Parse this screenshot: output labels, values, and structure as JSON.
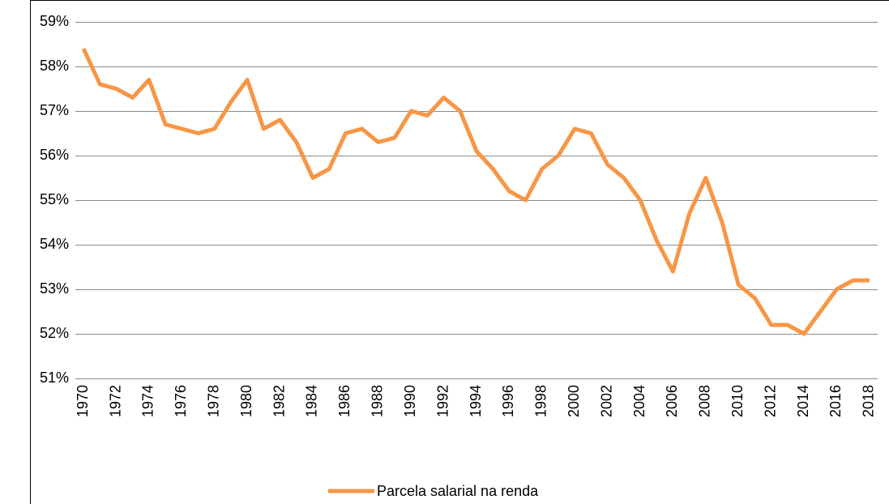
{
  "chart_data": {
    "type": "line",
    "categories": [
      "1970",
      null,
      "1972",
      null,
      "1974",
      null,
      "1976",
      null,
      "1978",
      null,
      "1980",
      null,
      "1982",
      null,
      "1984",
      null,
      "1986",
      null,
      "1988",
      null,
      "1990",
      null,
      "1992",
      null,
      "1994",
      null,
      "1996",
      null,
      "1998",
      null,
      "2000",
      null,
      "2002",
      null,
      "2004",
      null,
      "2006",
      null,
      "2008",
      null,
      "2010",
      null,
      "2012",
      null,
      "2014",
      null,
      "2016",
      null,
      "2018"
    ],
    "series": [
      {
        "name": "Parcela salarial na renda",
        "color": "#f79646",
        "values": [
          58.4,
          57.6,
          57.5,
          57.3,
          57.7,
          56.7,
          56.6,
          56.5,
          56.6,
          57.2,
          57.7,
          56.6,
          56.8,
          56.3,
          55.5,
          55.7,
          56.5,
          56.6,
          56.3,
          56.4,
          57.0,
          56.9,
          57.3,
          57.0,
          56.1,
          55.7,
          55.2,
          55.0,
          55.7,
          56.0,
          56.6,
          56.5,
          55.8,
          55.5,
          55.0,
          54.1,
          53.4,
          54.7,
          55.5,
          54.5,
          53.1,
          52.8,
          52.2,
          52.2,
          52.0,
          52.5,
          53.0,
          53.2,
          53.2
        ]
      }
    ],
    "ylim": [
      51,
      59
    ],
    "yticks": [
      {
        "value": 51,
        "label": "51%"
      },
      {
        "value": 52,
        "label": "52%"
      },
      {
        "value": 53,
        "label": "53%"
      },
      {
        "value": 54,
        "label": "54%"
      },
      {
        "value": 55,
        "label": "55%"
      },
      {
        "value": 56,
        "label": "56%"
      },
      {
        "value": 57,
        "label": "57%"
      },
      {
        "value": 58,
        "label": "58%"
      },
      {
        "value": 59,
        "label": "59%"
      }
    ],
    "grid": true,
    "legend": "bottom"
  }
}
